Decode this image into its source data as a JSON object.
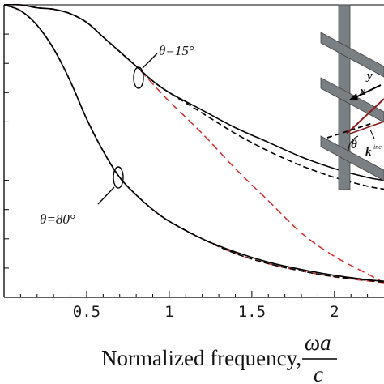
{
  "chart_data": {
    "type": "line",
    "title": "",
    "xlabel": "Normalized frequency,",
    "xlabel_fraction": {
      "numerator": "ωa",
      "denominator": "c"
    },
    "ylabel": "",
    "xlim": [
      0,
      2.3
    ],
    "ylim": [
      0,
      1.0
    ],
    "x_ticks": [
      "0.5",
      "1",
      "1.5",
      "2",
      "2."
    ],
    "grid": false,
    "series": [
      {
        "group": "θ=15°",
        "style": "solid black",
        "x": [
          0,
          0.1,
          0.2,
          0.3,
          0.4,
          0.5,
          0.6,
          0.7,
          0.8,
          0.9,
          1.0,
          1.2,
          1.4,
          1.6,
          1.8,
          2.0,
          2.2,
          2.3
        ],
        "y": [
          1.0,
          1.0,
          0.99,
          0.985,
          0.97,
          0.94,
          0.89,
          0.84,
          0.79,
          0.74,
          0.7,
          0.64,
          0.58,
          0.53,
          0.48,
          0.44,
          0.41,
          0.4
        ]
      },
      {
        "group": "θ=15°",
        "style": "dashed black",
        "x": [
          0,
          0.1,
          0.2,
          0.3,
          0.4,
          0.5,
          0.6,
          0.7,
          0.8,
          0.9,
          1.0,
          1.2,
          1.4,
          1.6,
          1.8,
          2.0,
          2.2,
          2.3
        ],
        "y": [
          1.0,
          1.0,
          0.99,
          0.985,
          0.97,
          0.94,
          0.89,
          0.84,
          0.79,
          0.74,
          0.7,
          0.63,
          0.56,
          0.5,
          0.45,
          0.41,
          0.38,
          0.37
        ]
      },
      {
        "group": "θ=15°",
        "style": "dashed red",
        "x": [
          0,
          0.1,
          0.2,
          0.3,
          0.4,
          0.5,
          0.6,
          0.7,
          0.8,
          0.9,
          1.0,
          1.2,
          1.4,
          1.6,
          1.8,
          2.0,
          2.2,
          2.3
        ],
        "y": [
          1.0,
          1.0,
          0.99,
          0.985,
          0.97,
          0.94,
          0.89,
          0.84,
          0.79,
          0.73,
          0.67,
          0.56,
          0.44,
          0.33,
          0.22,
          0.14,
          0.08,
          0.05
        ]
      },
      {
        "group": "θ=80°",
        "style": "solid black",
        "x": [
          0,
          0.1,
          0.2,
          0.3,
          0.4,
          0.5,
          0.6,
          0.7,
          0.8,
          0.9,
          1.0,
          1.2,
          1.4,
          1.6,
          1.8,
          2.0,
          2.2,
          2.3
        ],
        "y": [
          1.0,
          0.98,
          0.93,
          0.85,
          0.74,
          0.61,
          0.5,
          0.41,
          0.35,
          0.3,
          0.26,
          0.2,
          0.155,
          0.12,
          0.095,
          0.075,
          0.06,
          0.055
        ]
      },
      {
        "group": "θ=80°",
        "style": "dashed black",
        "x": [
          0,
          0.1,
          0.2,
          0.3,
          0.4,
          0.5,
          0.6,
          0.7,
          0.8,
          0.9,
          1.0,
          1.2,
          1.4,
          1.6,
          1.8,
          2.0,
          2.2,
          2.3
        ],
        "y": [
          1.0,
          0.98,
          0.93,
          0.85,
          0.74,
          0.61,
          0.5,
          0.41,
          0.35,
          0.3,
          0.26,
          0.2,
          0.15,
          0.115,
          0.09,
          0.07,
          0.058,
          0.052
        ]
      },
      {
        "group": "θ=80°",
        "style": "dashed red",
        "x": [
          0,
          0.1,
          0.2,
          0.3,
          0.4,
          0.5,
          0.6,
          0.7,
          0.8,
          0.9,
          1.0,
          1.2,
          1.4,
          1.6,
          1.8,
          2.0,
          2.2,
          2.3
        ],
        "y": [
          1.0,
          0.98,
          0.93,
          0.85,
          0.74,
          0.61,
          0.5,
          0.41,
          0.35,
          0.3,
          0.26,
          0.2,
          0.15,
          0.115,
          0.09,
          0.07,
          0.056,
          0.05
        ]
      }
    ],
    "annotations": {
      "theta15": "θ=15°",
      "theta80": "θ=80°"
    },
    "inset": {
      "labels": {
        "y": "y",
        "x": "x",
        "theta": "θ",
        "k": "k",
        "k_sup": "inc"
      }
    }
  }
}
